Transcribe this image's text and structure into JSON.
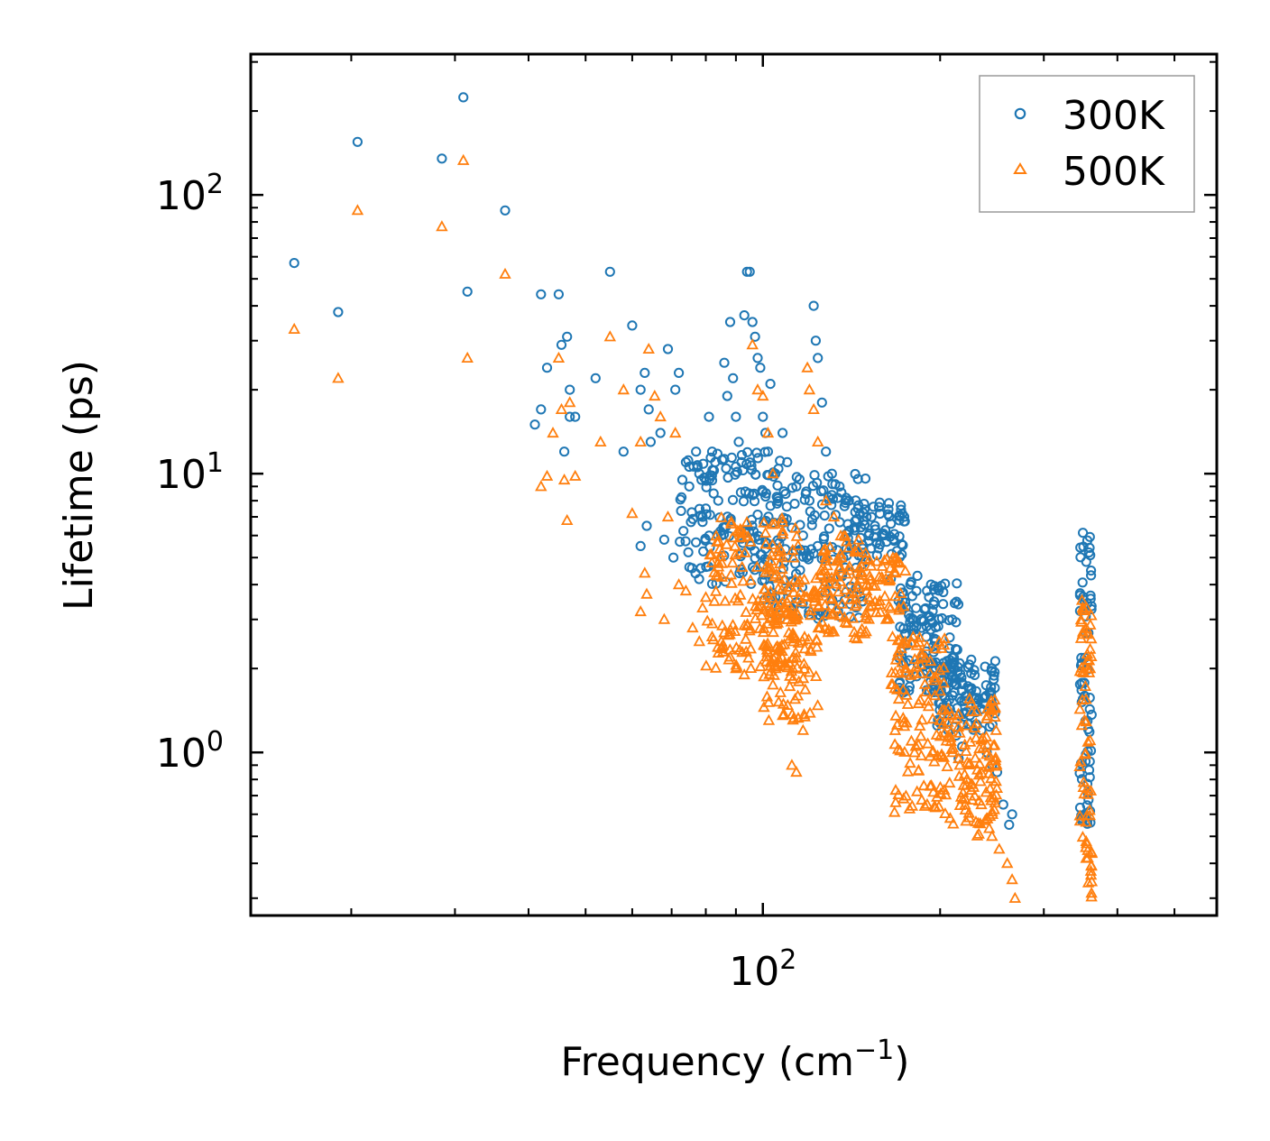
{
  "chart_data": {
    "type": "scatter",
    "xscale": "log",
    "yscale": "log",
    "xlabel": "Frequency (cm",
    "xlabel_sup": "−1",
    "xlabel_end": ")",
    "ylabel": "Lifetime (ps)",
    "xlim": [
      13.5,
      590
    ],
    "ylim": [
      0.26,
      320
    ],
    "xticks": [
      {
        "value": 100,
        "base": "10",
        "exp": "2"
      }
    ],
    "yticks": [
      {
        "value": 1,
        "base": "10",
        "exp": "0"
      },
      {
        "value": 10,
        "base": "10",
        "exp": "1"
      },
      {
        "value": 100,
        "base": "10",
        "exp": "2"
      }
    ],
    "legend": {
      "position": "top-right"
    },
    "series": [
      {
        "name": "300K",
        "marker": "circle",
        "color": "#1f77b4",
        "points": [
          [
            16,
            57
          ],
          [
            19,
            38
          ],
          [
            20.5,
            155
          ],
          [
            28.5,
            135
          ],
          [
            31,
            224
          ],
          [
            31.5,
            45
          ],
          [
            36.5,
            88
          ],
          [
            42,
            44
          ],
          [
            45,
            44
          ],
          [
            46.5,
            31
          ],
          [
            45.5,
            29
          ],
          [
            47,
            20
          ],
          [
            43,
            24
          ],
          [
            41,
            15
          ],
          [
            42,
            17
          ],
          [
            46,
            12
          ],
          [
            47,
            16
          ],
          [
            48,
            16
          ],
          [
            52,
            22
          ],
          [
            55,
            53
          ],
          [
            58,
            12
          ],
          [
            60,
            34
          ],
          [
            62,
            20
          ],
          [
            63,
            23
          ],
          [
            64,
            17
          ],
          [
            63.5,
            6.5
          ],
          [
            62,
            5.5
          ],
          [
            64.5,
            13
          ],
          [
            67,
            14
          ],
          [
            68,
            5.8
          ],
          [
            69,
            28
          ],
          [
            71,
            20
          ],
          [
            72,
            23
          ],
          [
            70.5,
            5.0
          ],
          [
            73,
            9.5
          ],
          [
            74,
            11
          ],
          [
            75,
            9
          ],
          [
            77,
            12
          ],
          [
            78,
            10
          ],
          [
            79,
            7
          ],
          [
            80,
            7.5
          ],
          [
            81,
            16
          ],
          [
            82,
            12
          ],
          [
            83,
            11
          ],
          [
            84,
            8
          ],
          [
            85,
            6
          ],
          [
            86,
            25
          ],
          [
            87,
            19
          ],
          [
            88,
            35
          ],
          [
            89,
            22
          ],
          [
            90,
            16
          ],
          [
            91,
            13
          ],
          [
            92,
            11
          ],
          [
            93,
            37
          ],
          [
            94,
            53
          ],
          [
            95,
            53
          ],
          [
            96,
            35
          ],
          [
            97,
            31
          ],
          [
            98,
            26
          ],
          [
            99,
            24
          ],
          [
            100,
            16
          ],
          [
            101,
            14
          ],
          [
            102,
            12
          ],
          [
            103,
            21
          ],
          [
            105,
            10
          ],
          [
            108,
            14
          ],
          [
            110,
            11
          ],
          [
            114,
            9
          ],
          [
            117,
            6
          ],
          [
            120,
            8
          ],
          [
            122,
            40
          ],
          [
            123,
            30
          ],
          [
            124,
            26
          ],
          [
            126,
            18
          ],
          [
            128,
            12
          ],
          [
            131,
            10
          ],
          [
            135,
            9
          ],
          [
            140,
            8
          ],
          [
            145,
            7.5
          ],
          [
            150,
            7
          ],
          [
            155,
            6.5
          ],
          [
            160,
            6
          ],
          [
            165,
            4.2
          ],
          [
            170,
            3.5
          ],
          [
            172,
            2.3
          ],
          [
            175,
            2.1
          ],
          [
            178,
            4.0
          ],
          [
            180,
            3.0
          ],
          [
            183,
            4.3
          ],
          [
            186,
            2.8
          ],
          [
            190,
            3.8
          ],
          [
            193,
            4.0
          ],
          [
            196,
            2.5
          ],
          [
            200,
            2.0
          ],
          [
            205,
            1.8
          ],
          [
            210,
            1.6
          ],
          [
            213,
            1.15
          ],
          [
            215,
            0.95
          ],
          [
            218,
            1.05
          ],
          [
            222,
            1.4
          ],
          [
            226,
            1.7
          ],
          [
            230,
            1.5
          ],
          [
            235,
            1.2
          ],
          [
            240,
            1.0
          ],
          [
            245,
            0.9
          ],
          [
            250,
            0.85
          ],
          [
            256,
            0.65
          ],
          [
            262,
            0.55
          ],
          [
            265,
            0.6
          ]
        ],
        "clusters": [
          {
            "x": [
              72,
              110
            ],
            "y": [
              4,
              12
            ],
            "n": 140
          },
          {
            "x": [
              100,
              150
            ],
            "y": [
              3,
              10
            ],
            "n": 160
          },
          {
            "x": [
              140,
              175
            ],
            "y": [
              5,
              8
            ],
            "n": 60
          },
          {
            "x": [
              170,
              215
            ],
            "y": [
              1.6,
              4.2
            ],
            "n": 120
          },
          {
            "x": [
              195,
              250
            ],
            "y": [
              1.2,
              2.2
            ],
            "n": 110
          },
          {
            "x": [
              345,
              362
            ],
            "y": [
              0.55,
              6.2
            ],
            "n": 70
          }
        ]
      },
      {
        "name": "500K",
        "marker": "triangle",
        "color": "#ff7f0e",
        "points": [
          [
            16,
            33
          ],
          [
            19,
            22
          ],
          [
            20.5,
            88
          ],
          [
            28.5,
            77
          ],
          [
            31,
            133
          ],
          [
            31.5,
            26
          ],
          [
            36.5,
            52
          ],
          [
            42,
            9
          ],
          [
            43,
            9.8
          ],
          [
            45,
            26
          ],
          [
            45.5,
            17
          ],
          [
            47,
            18
          ],
          [
            46,
            9.5
          ],
          [
            48,
            9.8
          ],
          [
            44,
            14
          ],
          [
            46.5,
            6.8
          ],
          [
            53,
            13
          ],
          [
            55,
            31
          ],
          [
            58,
            20
          ],
          [
            60,
            7.2
          ],
          [
            62,
            13
          ],
          [
            63,
            4.4
          ],
          [
            63.5,
            3.7
          ],
          [
            62,
            3.2
          ],
          [
            64,
            28
          ],
          [
            65.5,
            19
          ],
          [
            67,
            16
          ],
          [
            68,
            3.0
          ],
          [
            69,
            7
          ],
          [
            71,
            14
          ],
          [
            72,
            4.0
          ],
          [
            74,
            3.8
          ],
          [
            76,
            2.8
          ],
          [
            78,
            2.5
          ],
          [
            79,
            3.3
          ],
          [
            80,
            3.6
          ],
          [
            82,
            2.6
          ],
          [
            85,
            2.5
          ],
          [
            88,
            2.2
          ],
          [
            90,
            2.0
          ],
          [
            93,
            1.9
          ],
          [
            96,
            29
          ],
          [
            98,
            20
          ],
          [
            100,
            19
          ],
          [
            102,
            14
          ],
          [
            104,
            10
          ],
          [
            108,
            5
          ],
          [
            110,
            3
          ],
          [
            112,
            0.9
          ],
          [
            114,
            0.85
          ],
          [
            117,
            1.2
          ],
          [
            119,
            24
          ],
          [
            120,
            20
          ],
          [
            122,
            17
          ],
          [
            124,
            13
          ],
          [
            128,
            8
          ],
          [
            132,
            7
          ],
          [
            136,
            5
          ],
          [
            140,
            4.5
          ],
          [
            145,
            4
          ],
          [
            150,
            4
          ],
          [
            158,
            3.5
          ],
          [
            162,
            3.0
          ],
          [
            166,
            2.6
          ],
          [
            170,
            2.3
          ],
          [
            175,
            2.0
          ],
          [
            180,
            2.6
          ],
          [
            186,
            2.2
          ],
          [
            190,
            2.4
          ],
          [
            196,
            1.6
          ],
          [
            200,
            1.3
          ],
          [
            205,
            1.1
          ],
          [
            210,
            1.0
          ],
          [
            216,
            0.9
          ],
          [
            222,
            0.8
          ],
          [
            228,
            0.75
          ],
          [
            235,
            0.65
          ],
          [
            240,
            0.58
          ],
          [
            245,
            0.5
          ],
          [
            252,
            0.45
          ],
          [
            260,
            0.4
          ],
          [
            265,
            0.35
          ],
          [
            268,
            0.3
          ]
        ],
        "clusters": [
          {
            "x": [
              80,
              115
            ],
            "y": [
              2,
              7
            ],
            "n": 170
          },
          {
            "x": [
              100,
              125
            ],
            "y": [
              1.3,
              4.5
            ],
            "n": 120
          },
          {
            "x": [
              125,
              150
            ],
            "y": [
              2.5,
              6
            ],
            "n": 90
          },
          {
            "x": [
              150,
              175
            ],
            "y": [
              3,
              5
            ],
            "n": 50
          },
          {
            "x": [
              165,
              205
            ],
            "y": [
              0.6,
              2.6
            ],
            "n": 120
          },
          {
            "x": [
              205,
              250
            ],
            "y": [
              0.5,
              1.6
            ],
            "n": 110
          },
          {
            "x": [
              345,
              362
            ],
            "y": [
              0.3,
              3.6
            ],
            "n": 70
          }
        ]
      }
    ]
  }
}
